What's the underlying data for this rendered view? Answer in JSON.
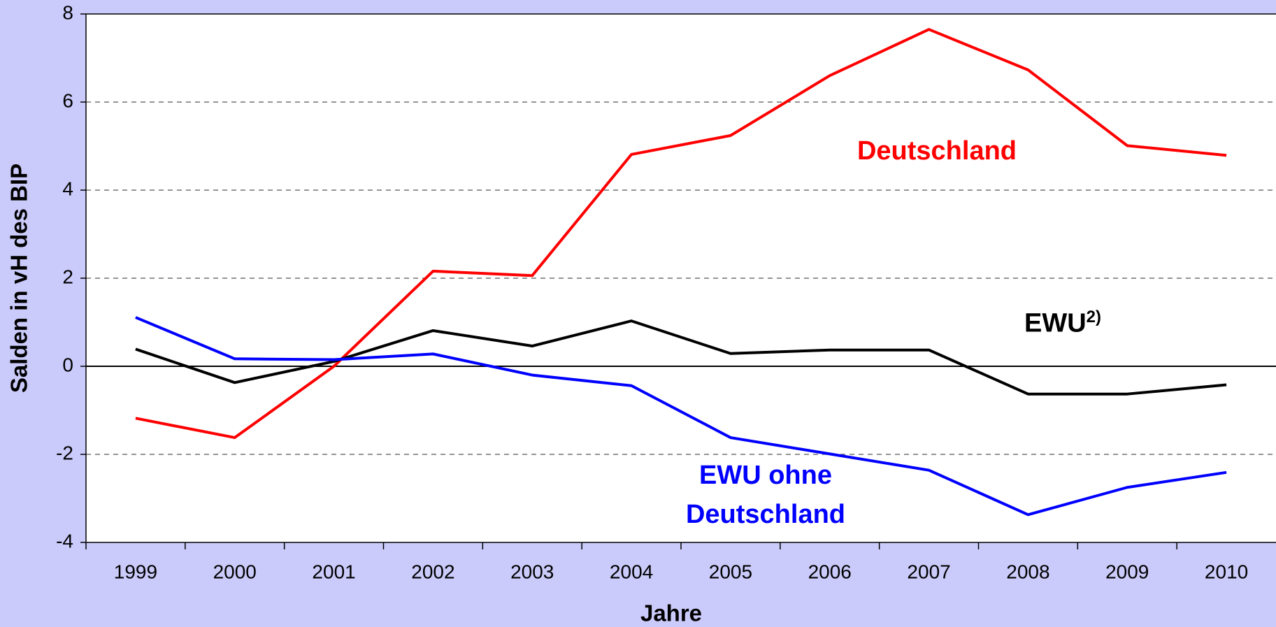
{
  "chart_data": {
    "type": "line",
    "x_label": "Jahre",
    "y_label": "Salden in vH des BIP",
    "categories": [
      "1999",
      "2000",
      "2001",
      "2002",
      "2003",
      "2004",
      "2005",
      "2006",
      "2007",
      "2008",
      "2009",
      "2010"
    ],
    "series": [
      {
        "name": "Deutschland",
        "color": "#ff0000",
        "values": [
          -1.18,
          -1.62,
          0.0,
          2.16,
          2.06,
          4.81,
          5.24,
          6.6,
          7.65,
          6.73,
          5.01,
          4.79
        ]
      },
      {
        "name": "EWU",
        "color": "#000000",
        "footnote_marker": "2)",
        "values": [
          0.39,
          -0.37,
          0.11,
          0.81,
          0.46,
          1.03,
          0.29,
          0.37,
          0.37,
          -0.63,
          -0.63,
          -0.42
        ]
      },
      {
        "name": "EWU ohne Deutschland",
        "color": "#0000ff",
        "values": [
          1.11,
          0.17,
          0.15,
          0.28,
          -0.2,
          -0.44,
          -1.62,
          -1.99,
          -2.36,
          -3.37,
          -2.75,
          -2.41
        ]
      }
    ],
    "ylim": [
      -4,
      8
    ],
    "yticks": [
      -4,
      -2,
      0,
      2,
      4,
      6,
      8
    ],
    "grid": true
  }
}
